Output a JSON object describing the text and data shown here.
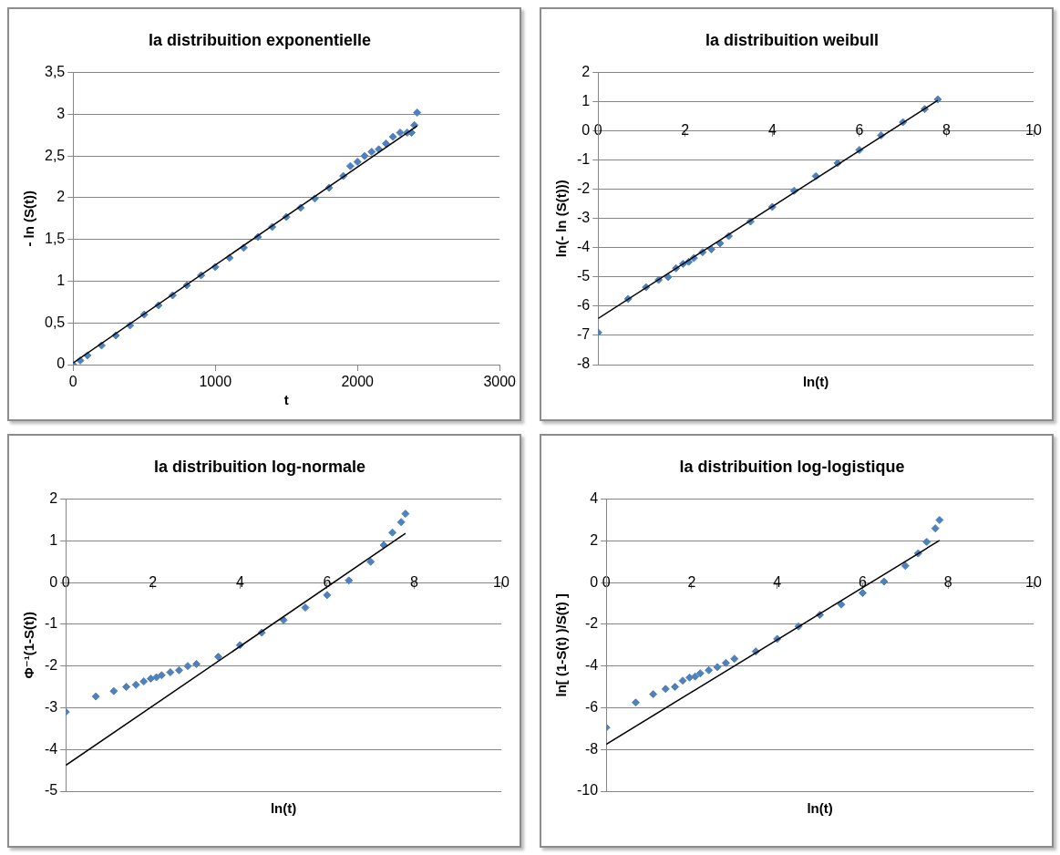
{
  "chart_data": [
    {
      "type": "scatter",
      "title": "la distribuition exponentielle",
      "xlabel": "t",
      "ylabel": "- ln (S(t))",
      "xlim": [
        0,
        3000
      ],
      "xticks": [
        0,
        1000,
        2000,
        3000
      ],
      "ylim": [
        0,
        3.5
      ],
      "yticks": [
        0,
        {
          "value": 0.5,
          "label": "0,5"
        },
        1,
        {
          "value": 1.5,
          "label": "1,5"
        },
        2,
        {
          "value": 2.5,
          "label": "2,5"
        },
        3,
        {
          "value": 3.5,
          "label": "3,5"
        }
      ],
      "grid": "y",
      "legend": false,
      "marker": "diamond",
      "series": [
        {
          "color": "#4f81bd",
          "x": [
            0,
            50,
            100,
            200,
            300,
            400,
            500,
            600,
            700,
            800,
            900,
            1000,
            1100,
            1200,
            1300,
            1400,
            1500,
            1600,
            1700,
            1800,
            1900,
            1950,
            2000,
            2050,
            2100,
            2150,
            2200,
            2250,
            2300,
            2350,
            2380,
            2400,
            2420
          ],
          "values": [
            0,
            0.05,
            0.11,
            0.23,
            0.35,
            0.47,
            0.6,
            0.71,
            0.83,
            0.95,
            1.07,
            1.17,
            1.28,
            1.4,
            1.53,
            1.65,
            1.77,
            1.88,
            1.99,
            2.12,
            2.26,
            2.38,
            2.43,
            2.5,
            2.55,
            2.58,
            2.65,
            2.73,
            2.78,
            2.78,
            2.78,
            2.87,
            3.02
          ]
        },
        {
          "type": "line",
          "color": "#000000",
          "marker": "none",
          "x": [
            0,
            2420
          ],
          "values": [
            0.02,
            2.86
          ]
        }
      ]
    },
    {
      "type": "scatter",
      "title": "la distribuition weibull",
      "xlabel": "ln(t)",
      "ylabel": "ln(- ln (S(t)))",
      "xlim": [
        0,
        10
      ],
      "xticks": [
        0,
        2,
        4,
        6,
        8,
        10
      ],
      "ylim": [
        -8,
        2
      ],
      "yticks": [
        -8,
        -7,
        -6,
        -5,
        -4,
        -3,
        -2,
        -1,
        0,
        1,
        2
      ],
      "grid": "y",
      "legend": false,
      "marker": "diamond",
      "series": [
        {
          "color": "#4f81bd",
          "x": [
            0,
            0.69,
            1.1,
            1.39,
            1.61,
            1.79,
            1.95,
            2.08,
            2.2,
            2.4,
            2.6,
            2.8,
            3,
            3.5,
            4,
            4.5,
            5,
            5.5,
            6,
            6.5,
            7,
            7.5,
            7.8
          ],
          "values": [
            -6.9,
            -5.75,
            -5.35,
            -5.1,
            -5.0,
            -4.7,
            -4.55,
            -4.48,
            -4.35,
            -4.15,
            -4.05,
            -3.85,
            -3.6,
            -3.1,
            -2.6,
            -2.05,
            -1.55,
            -1.1,
            -0.65,
            -0.15,
            0.3,
            0.75,
            1.08
          ]
        },
        {
          "type": "line",
          "color": "#000000",
          "marker": "none",
          "x": [
            0,
            7.8
          ],
          "values": [
            -6.42,
            1.05
          ]
        }
      ]
    },
    {
      "type": "scatter",
      "title": "la distribuition log-normale",
      "xlabel": "ln(t)",
      "ylabel": "Φ⁻¹(1-S(t))",
      "xlim": [
        0,
        10
      ],
      "xticks": [
        0,
        2,
        4,
        6,
        8,
        10
      ],
      "ylim": [
        -5,
        2
      ],
      "yticks": [
        -5,
        -4,
        -3,
        -2,
        -1,
        0,
        1,
        2
      ],
      "grid": "y",
      "legend": false,
      "marker": "diamond",
      "series": [
        {
          "color": "#4f81bd",
          "x": [
            0,
            0.69,
            1.1,
            1.39,
            1.61,
            1.79,
            1.95,
            2.08,
            2.2,
            2.4,
            2.6,
            2.8,
            3,
            3.5,
            4,
            4.5,
            5,
            5.5,
            6,
            6.5,
            7,
            7.3,
            7.5,
            7.7,
            7.8
          ],
          "values": [
            -3.1,
            -2.73,
            -2.6,
            -2.5,
            -2.45,
            -2.37,
            -2.3,
            -2.27,
            -2.22,
            -2.15,
            -2.1,
            -2.0,
            -1.95,
            -1.78,
            -1.5,
            -1.2,
            -0.9,
            -0.6,
            -0.3,
            0.05,
            0.5,
            0.9,
            1.2,
            1.45,
            1.65
          ]
        },
        {
          "type": "line",
          "color": "#000000",
          "marker": "none",
          "x": [
            0,
            7.8
          ],
          "values": [
            -4.38,
            1.18
          ]
        }
      ]
    },
    {
      "type": "scatter",
      "title": "la distribuition log-logistique",
      "xlabel": "ln(t)",
      "ylabel": "ln[ (1-S(t) )/S(t) ]",
      "xlim": [
        0,
        10
      ],
      "xticks": [
        0,
        2,
        4,
        6,
        8,
        10
      ],
      "ylim": [
        -10,
        4
      ],
      "yticks": [
        -10,
        -8,
        -6,
        -4,
        -2,
        0,
        2,
        4
      ],
      "grid": "y",
      "legend": false,
      "marker": "diamond",
      "series": [
        {
          "color": "#4f81bd",
          "x": [
            0,
            0.69,
            1.1,
            1.39,
            1.61,
            1.79,
            1.95,
            2.08,
            2.2,
            2.4,
            2.6,
            2.8,
            3,
            3.5,
            4,
            4.5,
            5,
            5.5,
            6,
            6.5,
            7,
            7.3,
            7.5,
            7.7,
            7.8
          ],
          "values": [
            -6.95,
            -5.75,
            -5.35,
            -5.1,
            -5.0,
            -4.7,
            -4.55,
            -4.5,
            -4.35,
            -4.2,
            -4.05,
            -3.85,
            -3.65,
            -3.3,
            -2.7,
            -2.1,
            -1.55,
            -1.05,
            -0.5,
            0.05,
            0.8,
            1.4,
            1.95,
            2.6,
            3.0
          ]
        },
        {
          "type": "line",
          "color": "#000000",
          "marker": "none",
          "x": [
            0,
            7.8
          ],
          "values": [
            -7.75,
            2.02
          ]
        }
      ]
    }
  ]
}
